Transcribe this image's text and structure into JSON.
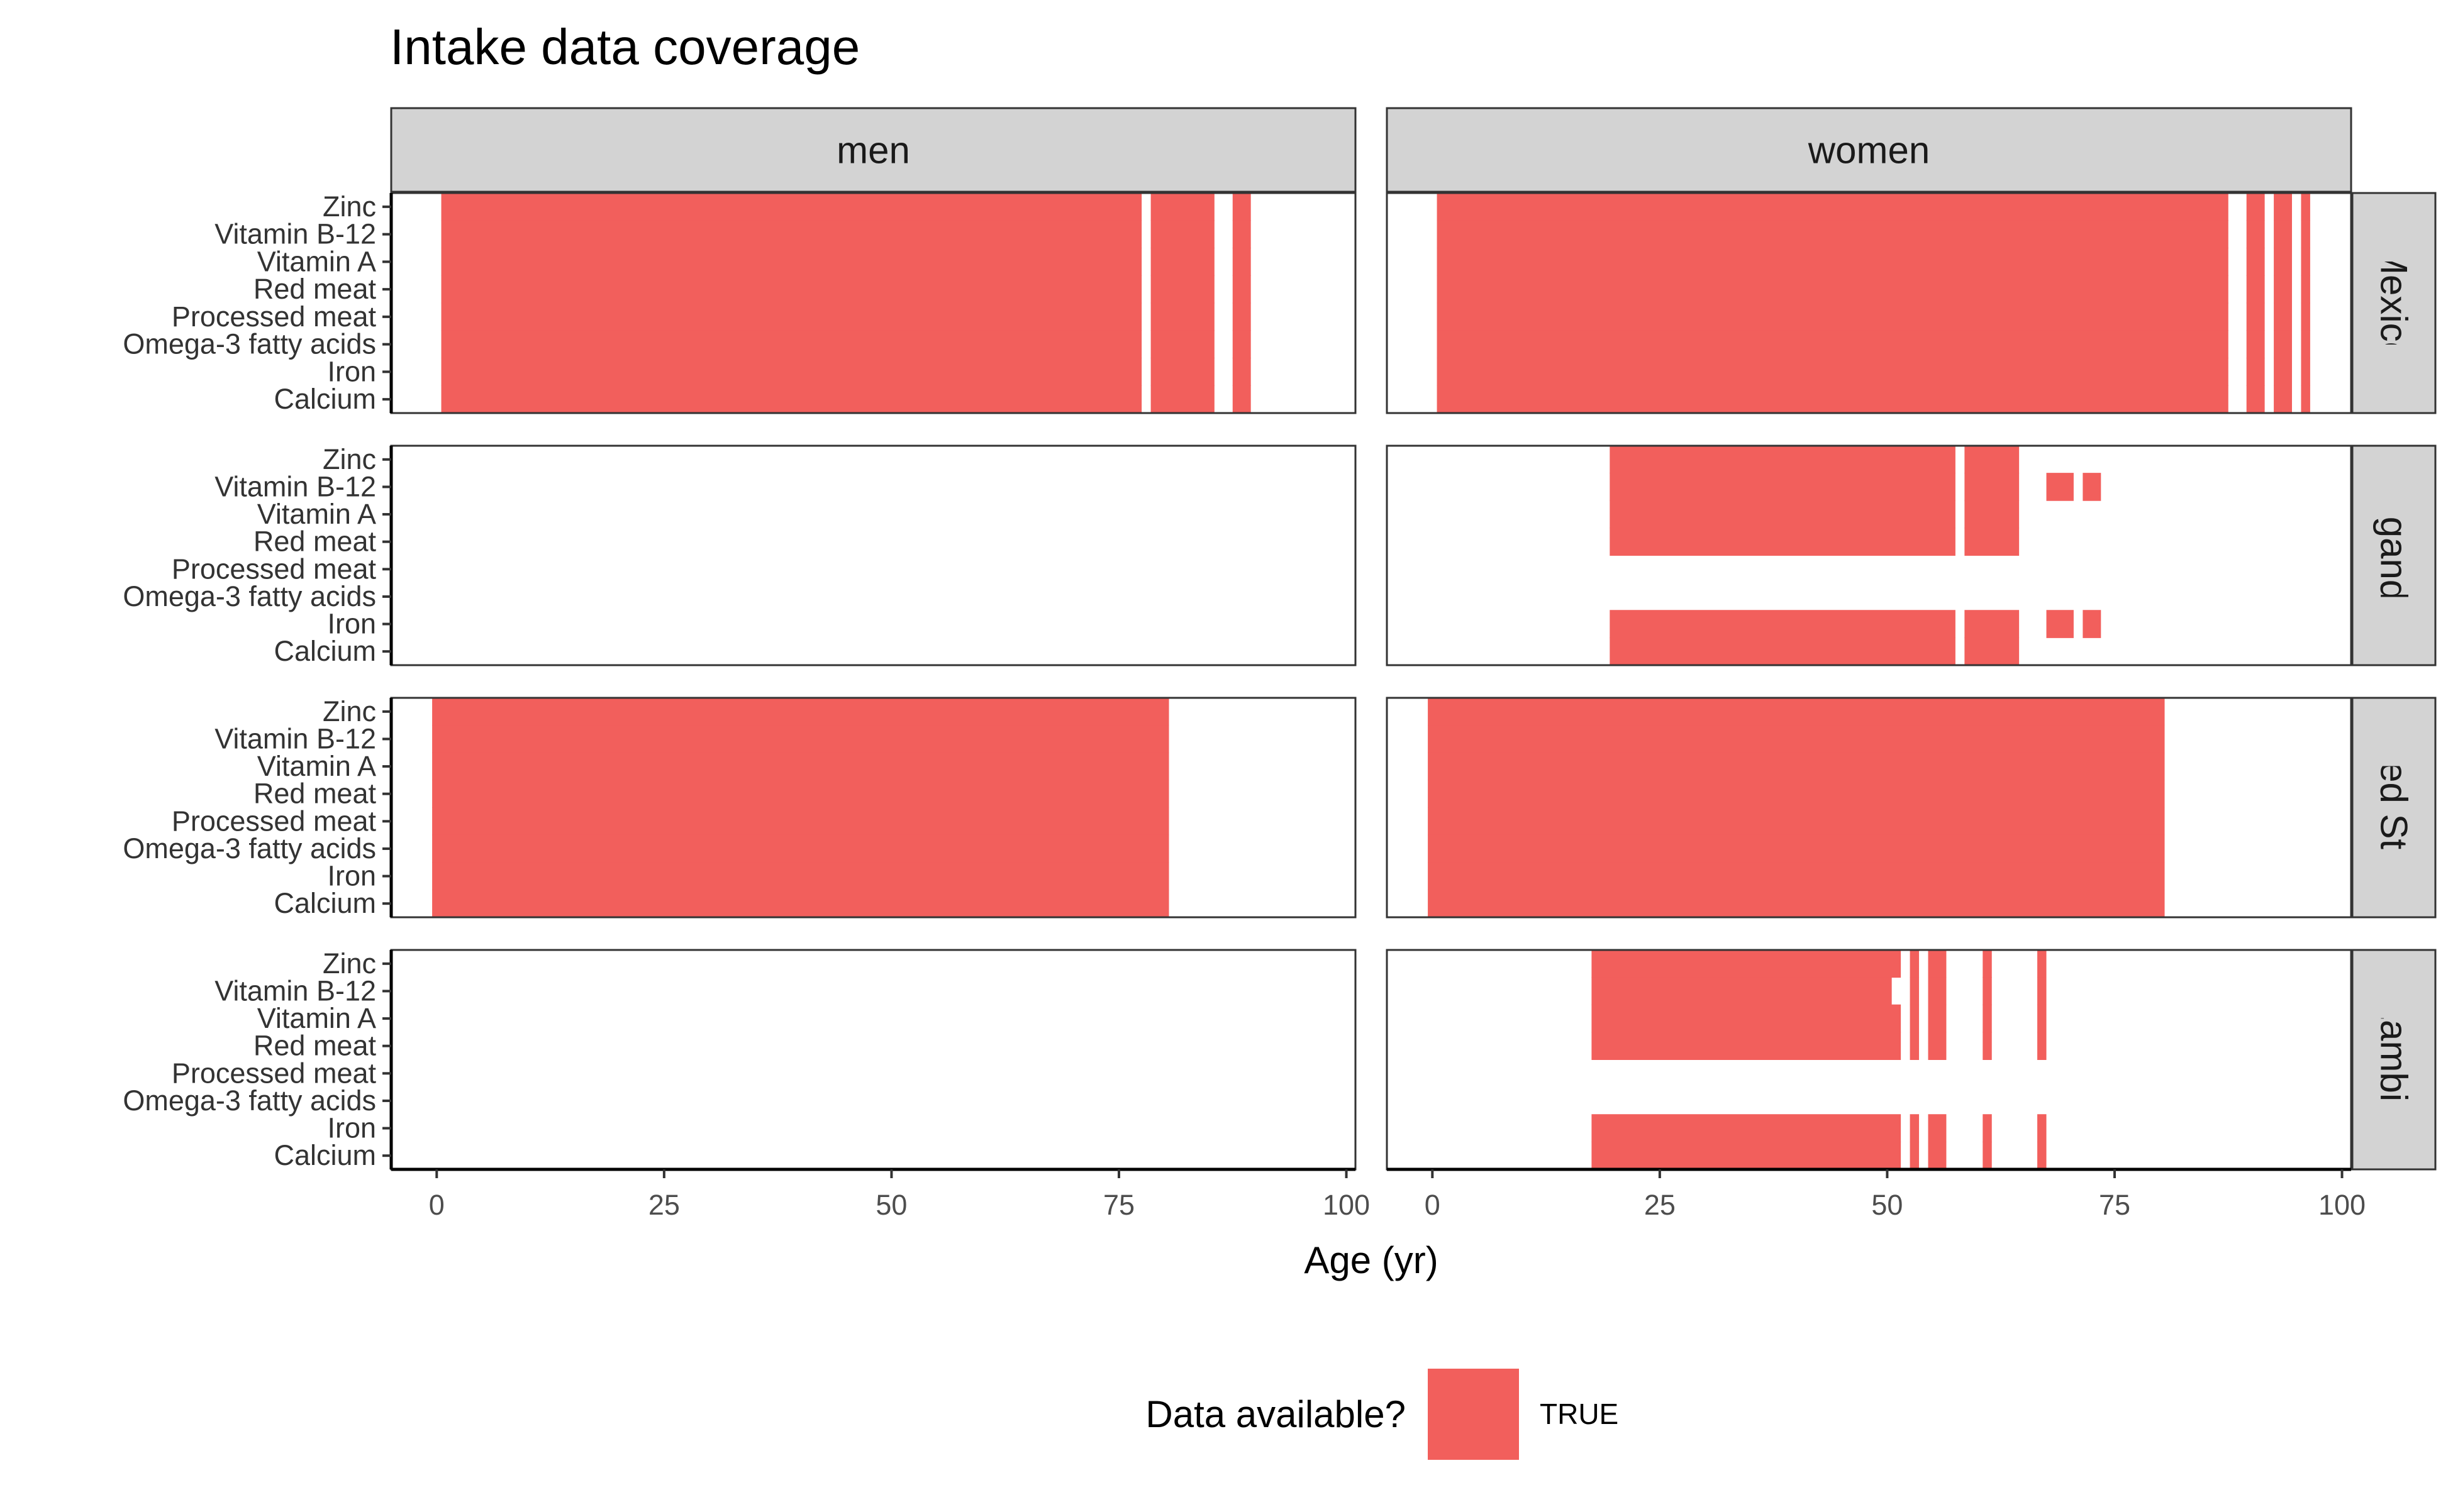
{
  "chart_data": {
    "type": "heatmap",
    "title": "Intake data coverage",
    "xlabel": "Age (yr)",
    "ylabel": "",
    "xlim": [
      -5,
      101
    ],
    "x_ticks": [
      0,
      25,
      50,
      75,
      100
    ],
    "y_categories": [
      "Zinc",
      "Vitamin B-12",
      "Vitamin A",
      "Red meat",
      "Processed meat",
      "Omega-3 fatty acids",
      "Iron",
      "Calcium"
    ],
    "columns": [
      "men",
      "women"
    ],
    "rows": [
      "Mexico",
      "Uganda",
      "United States",
      "Zambia"
    ],
    "legend": {
      "title": "Data available?",
      "entries": [
        "TRUE"
      ],
      "position": "bottom"
    },
    "fill_color": "#F25F5C",
    "grid": false,
    "panels": [
      {
        "country": "Mexico",
        "sex": "men",
        "coverage": [
          {
            "nutrients": "all",
            "age_ranges": [
              [
                0.5,
                77.5
              ],
              [
                78.5,
                85.5
              ],
              [
                87.5,
                89.5
              ]
            ]
          }
        ]
      },
      {
        "country": "Mexico",
        "sex": "women",
        "coverage": [
          {
            "nutrients": "all",
            "age_ranges": [
              [
                0.5,
                87.5
              ],
              [
                89.5,
                91.5
              ],
              [
                92.5,
                94.5
              ],
              [
                95.5,
                96.5
              ]
            ]
          }
        ]
      },
      {
        "country": "Uganda",
        "sex": "men",
        "coverage": []
      },
      {
        "country": "Uganda",
        "sex": "women",
        "coverage": [
          {
            "nutrients": [
              "Zinc",
              "Vitamin B-12",
              "Vitamin A",
              "Red meat"
            ],
            "age_ranges": [
              [
                19.5,
                57.5
              ],
              [
                58.5,
                64.5
              ],
              [
                67.5,
                70.5
              ],
              [
                71.5,
                73.5
              ]
            ],
            "partial_rows": {
              "Zinc": [
                [
                  19.5,
                  57.5
                ],
                [
                  58.5,
                  64.5
                ]
              ],
              "Vitamin A": [
                [
                  19.5,
                  57.5
                ],
                [
                  58.5,
                  64.5
                ]
              ],
              "Red meat": [
                [
                  19.5,
                  57.5
                ],
                [
                  58.5,
                  64.5
                ]
              ]
            }
          },
          {
            "nutrients": [
              "Iron",
              "Calcium"
            ],
            "age_ranges": [
              [
                19.5,
                57.5
              ],
              [
                58.5,
                64.5
              ]
            ]
          },
          {
            "nutrients": [
              "Iron"
            ],
            "age_ranges": [
              [
                67.5,
                70.5
              ],
              [
                71.5,
                73.5
              ]
            ]
          }
        ]
      },
      {
        "country": "United States",
        "sex": "men",
        "coverage": [
          {
            "nutrients": "all",
            "age_ranges": [
              [
                -0.5,
                80.5
              ]
            ]
          }
        ]
      },
      {
        "country": "United States",
        "sex": "women",
        "coverage": [
          {
            "nutrients": "all",
            "age_ranges": [
              [
                -0.5,
                80.5
              ]
            ]
          }
        ]
      },
      {
        "country": "Zambia",
        "sex": "men",
        "coverage": []
      },
      {
        "country": "Zambia",
        "sex": "women",
        "coverage": [
          {
            "nutrients": [
              "Zinc",
              "Vitamin A",
              "Red meat"
            ],
            "age_ranges": [
              [
                17.5,
                51.5
              ],
              [
                52.5,
                53.5
              ],
              [
                54.5,
                56.5
              ],
              [
                60.5,
                61.5
              ],
              [
                66.5,
                67.5
              ]
            ]
          },
          {
            "nutrients": [
              "Vitamin B-12"
            ],
            "age_ranges": [
              [
                17.5,
                50.5
              ],
              [
                52.5,
                53.5
              ],
              [
                54.5,
                56.5
              ],
              [
                60.5,
                61.5
              ],
              [
                66.5,
                67.5
              ]
            ]
          },
          {
            "nutrients": [
              "Iron",
              "Calcium"
            ],
            "age_ranges": [
              [
                17.5,
                51.5
              ],
              [
                52.5,
                53.5
              ],
              [
                54.5,
                56.5
              ],
              [
                60.5,
                61.5
              ],
              [
                66.5,
                67.5
              ]
            ]
          }
        ]
      }
    ]
  }
}
